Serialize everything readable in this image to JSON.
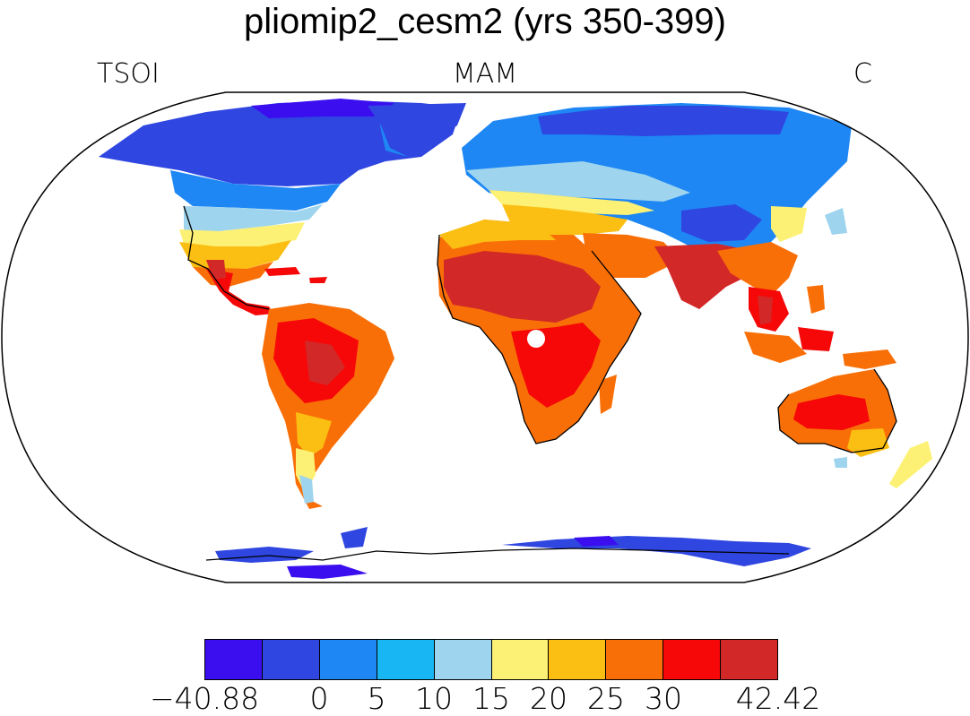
{
  "title": "pliomip2_cesm2 (yrs 350-399)",
  "left_label": "TSOI",
  "center_label": "MAM",
  "right_label": "C",
  "colorbar": {
    "colors": [
      "#3b0ef0",
      "#2f46e0",
      "#1e87f4",
      "#18b6f2",
      "#9ed4ee",
      "#fdf175",
      "#fbbe12",
      "#f96f07",
      "#f60808",
      "#d32828"
    ],
    "labels": [
      "−40.88",
      "0",
      "5",
      "10",
      "15",
      "20",
      "25",
      "30",
      "42.42"
    ],
    "label_positions": [
      0,
      2,
      3,
      4,
      5,
      6,
      7,
      8,
      10
    ]
  }
}
